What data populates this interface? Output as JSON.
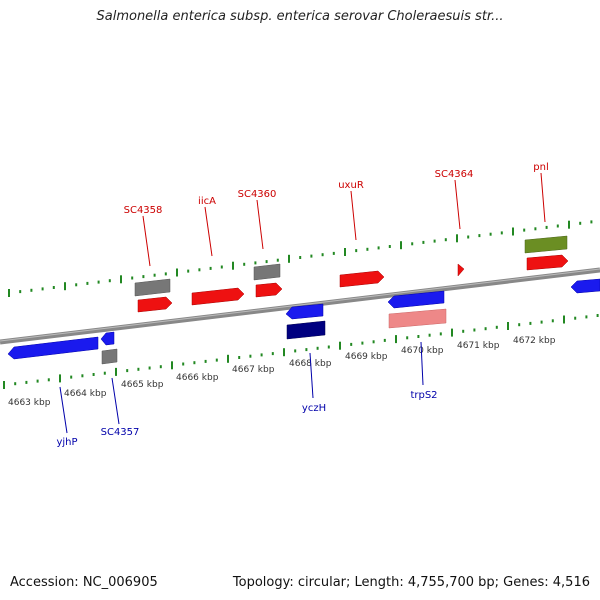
{
  "title": "Salmonella enterica subsp. enterica serovar Choleraesuis str...",
  "footer": {
    "accession": "Accession: NC_006905",
    "info": "Topology: circular; Length: 4,755,700 bp; Genes: 4,516"
  },
  "colors": {
    "forward_gene": "#ee1111",
    "reverse_gene": "#1a1aee",
    "forward_label": "#cc0000",
    "reverse_label": "#0000aa",
    "tick": "#228822",
    "backbone": "#888888",
    "rna": "#778899",
    "pseudo": "#ee8888",
    "misc": "#6b8e23",
    "dark_reverse": "#000080"
  },
  "scale_labels": [
    "4663 kbp",
    "4664 kbp",
    "4665 kbp",
    "4666 kbp",
    "4667 kbp",
    "4668 kbp",
    "4669 kbp",
    "4670 kbp",
    "4671 kbp",
    "4672 kbp"
  ],
  "forward_labels": [
    "SC4358",
    "iicA",
    "SC4360",
    "uxuR",
    "SC4364",
    "pnl"
  ],
  "reverse_labels": [
    "yjhP",
    "SC4357",
    "yczH",
    "trpS2"
  ]
}
